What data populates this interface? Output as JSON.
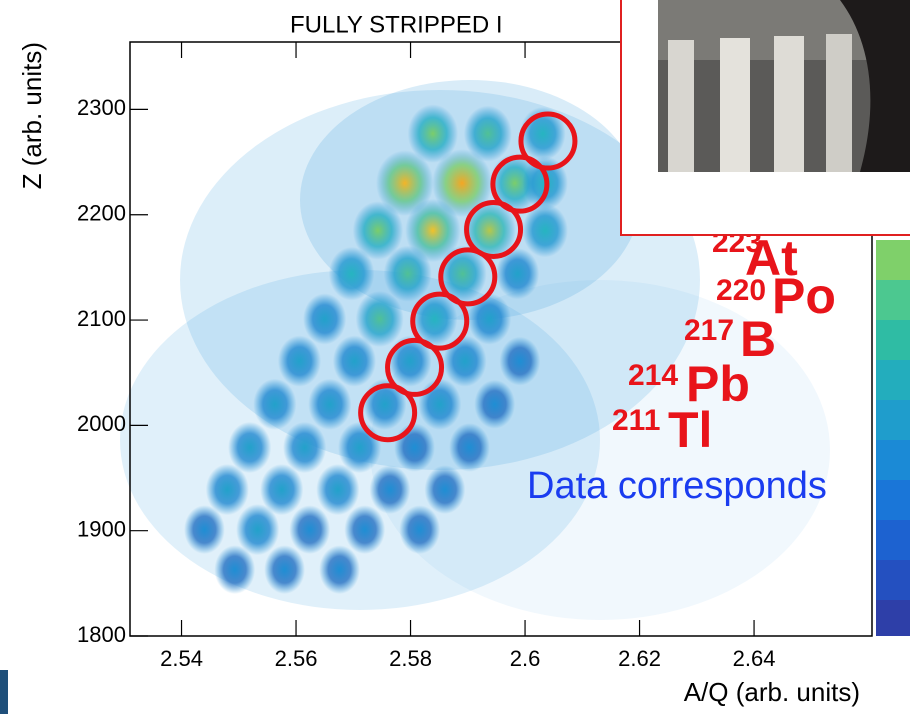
{
  "chart_data": {
    "type": "histogram2d",
    "title": "FULLY STRIPPED I",
    "x_label": "A/Q (arb. units)",
    "y_label": "Z (arb. units)",
    "xlim": [
      2.531,
      2.6606
    ],
    "ylim": [
      1800,
      2364
    ],
    "xticks": [
      2.54,
      2.56,
      2.58,
      2.6,
      2.62,
      2.64
    ],
    "yticks": [
      1800,
      1900,
      2000,
      2100,
      2200,
      2300
    ],
    "zlim": [
      0,
      10
    ],
    "x": [
      2.5839,
      2.5935,
      2.6031,
      2.579,
      2.589,
      2.5982,
      2.6035,
      2.5743,
      2.5839,
      2.5938,
      2.6035,
      2.5697,
      2.5795,
      2.5891,
      2.5987,
      2.565,
      2.5746,
      2.5842,
      2.5938,
      2.5606,
      2.5702,
      2.5799,
      2.5895,
      2.5991,
      2.5563,
      2.5659,
      2.5755,
      2.5851,
      2.5947,
      2.5519,
      2.5615,
      2.5711,
      2.5807,
      2.5903,
      2.548,
      2.5575,
      2.5673,
      2.5764,
      2.586,
      2.544,
      2.5533,
      2.5624,
      2.572,
      2.5816,
      2.5493,
      2.558,
      2.5676
    ],
    "y": [
      2277,
      2277,
      2277,
      2230,
      2230,
      2230,
      2230,
      2185,
      2185,
      2185,
      2185,
      2144,
      2144,
      2144,
      2144,
      2101,
      2101,
      2101,
      2101,
      2061,
      2061,
      2061,
      2061,
      2061,
      2020,
      2020,
      2020,
      2020,
      2020,
      1979,
      1979,
      1979,
      1979,
      1979,
      1939,
      1939,
      1939,
      1939,
      1939,
      1901,
      1901,
      1901,
      1901,
      1901,
      1863,
      1863,
      1863
    ],
    "values": [
      6,
      5,
      4,
      9,
      10,
      6,
      4,
      6,
      8,
      7,
      4,
      4,
      5,
      5,
      3,
      3,
      5,
      4,
      3,
      3,
      3,
      3,
      3,
      2,
      3,
      3,
      3,
      3,
      2,
      3,
      3,
      3,
      2,
      2,
      3,
      3,
      3,
      2,
      2,
      2,
      3,
      2,
      2,
      2,
      2,
      2,
      2
    ],
    "highlight_circles": {
      "x": [
        2.576,
        2.5807,
        2.5851,
        2.59,
        2.5945,
        2.5991,
        2.604
      ],
      "y": [
        2012,
        2055,
        2099,
        2141,
        2186,
        2229,
        2270
      ]
    },
    "isotopes": [
      {
        "mass": "223",
        "element": "At"
      },
      {
        "mass": "220",
        "element": "Po"
      },
      {
        "mass": "217",
        "element": "B"
      },
      {
        "mass": "214",
        "element": "Pb"
      },
      {
        "mass": "211",
        "element": "Tl"
      }
    ],
    "caption": "Data corresponds"
  }
}
